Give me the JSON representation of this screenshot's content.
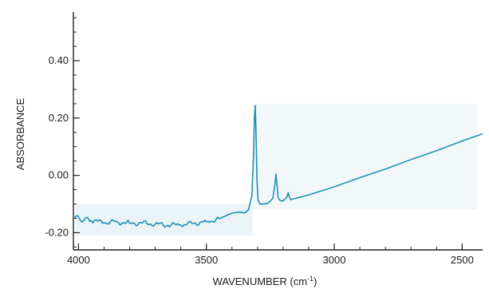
{
  "chart_data": {
    "type": "line",
    "title": "",
    "xlabel": "WAVENUMBER (cm",
    "xlabel_sup": "-1",
    "xlabel_close": ")",
    "ylabel": "ABSORBANCE",
    "xlim": [
      4020,
      2420
    ],
    "ylim": [
      -0.26,
      0.57
    ],
    "x_reversed": true,
    "grid": false,
    "xticks": [
      4000,
      3500,
      3000,
      2500
    ],
    "xtick_labels": [
      "4000",
      "3500",
      "3000",
      "2500"
    ],
    "yticks": [
      0.4,
      0.2,
      0.0,
      -0.2
    ],
    "ytick_labels": [
      "0.40",
      "0.20",
      "0.00",
      "-0.20"
    ],
    "series": [
      {
        "color": "#1e90b4",
        "x": [
          4020,
          3950,
          3900,
          3850,
          3800,
          3750,
          3700,
          3650,
          3600,
          3550,
          3500,
          3450,
          3400,
          3370,
          3350,
          3335,
          3322,
          3316,
          3312,
          3309,
          3306,
          3302,
          3298,
          3290,
          3280,
          3260,
          3240,
          3232,
          3228,
          3224,
          3220,
          3215,
          3205,
          3195,
          3185,
          3180,
          3176,
          3170,
          3160,
          3100,
          3000,
          2900,
          2800,
          2700,
          2600,
          2500,
          2420
        ],
        "y": [
          -0.148,
          -0.158,
          -0.165,
          -0.162,
          -0.167,
          -0.166,
          -0.17,
          -0.174,
          -0.173,
          -0.167,
          -0.162,
          -0.151,
          -0.132,
          -0.128,
          -0.131,
          -0.12,
          -0.07,
          0.06,
          0.2,
          0.244,
          0.15,
          -0.02,
          -0.085,
          -0.1,
          -0.1,
          -0.098,
          -0.08,
          -0.03,
          0.005,
          -0.03,
          -0.075,
          -0.085,
          -0.09,
          -0.085,
          -0.075,
          -0.06,
          -0.075,
          -0.085,
          -0.082,
          -0.068,
          -0.04,
          -0.008,
          0.022,
          0.055,
          0.086,
          0.12,
          0.145
        ]
      }
    ]
  }
}
